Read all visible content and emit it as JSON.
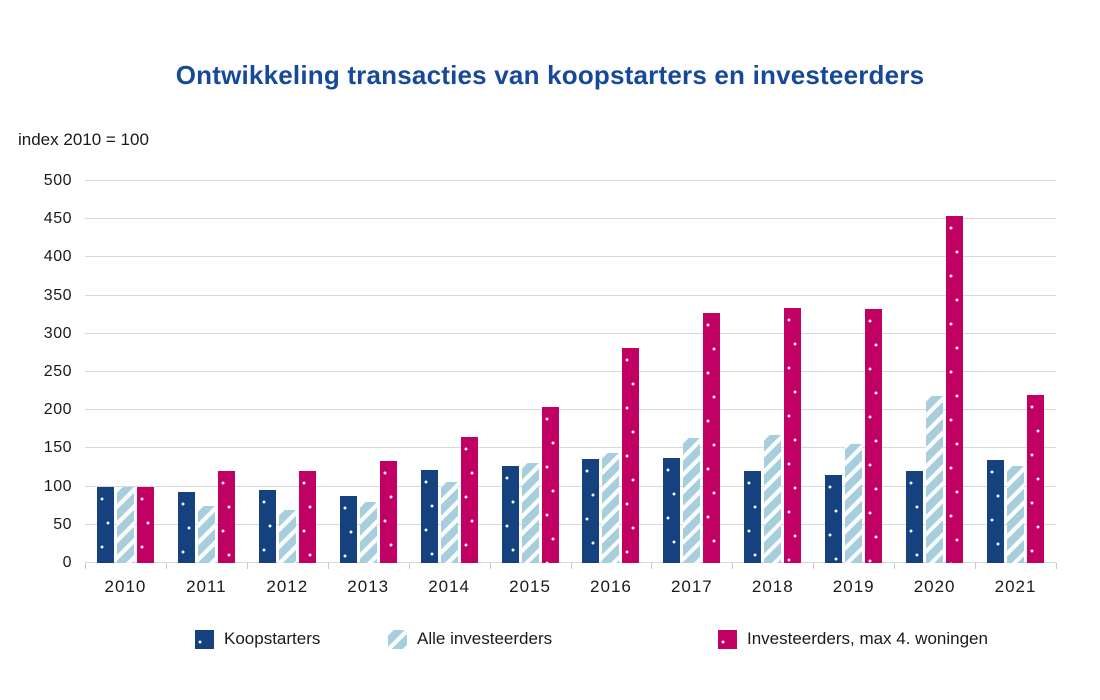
{
  "colors": {
    "title": "#17499a",
    "grid": "#d9d9d9",
    "axis_text": "#1a1a1a"
  },
  "chart_data": {
    "type": "bar",
    "title": "Ontwikkeling transacties van koopstarters en investeerders",
    "index_label": "index 2010 = 100",
    "categories": [
      "2010",
      "2011",
      "2012",
      "2013",
      "2014",
      "2015",
      "2016",
      "2017",
      "2018",
      "2019",
      "2020",
      "2021"
    ],
    "series": [
      {
        "name": "Koopstarters",
        "color": "#15427e",
        "pattern": "dots",
        "values": [
          100,
          93,
          95,
          88,
          122,
          127,
          136,
          138,
          120,
          115,
          120,
          135
        ]
      },
      {
        "name": "Alle investeerders",
        "color": "#a6cedd",
        "pattern": "stripes",
        "values": [
          100,
          74,
          70,
          80,
          106,
          131,
          144,
          163,
          167,
          156,
          218,
          127
        ]
      },
      {
        "name": "Investeerders, max 4. woningen",
        "color": "#c00063",
        "pattern": "dots",
        "values": [
          100,
          120,
          120,
          134,
          165,
          204,
          281,
          327,
          334,
          333,
          454,
          220
        ]
      }
    ],
    "ylim": [
      0,
      500
    ],
    "ytick_step": 50,
    "grid": true,
    "legend_position": "bottom"
  }
}
